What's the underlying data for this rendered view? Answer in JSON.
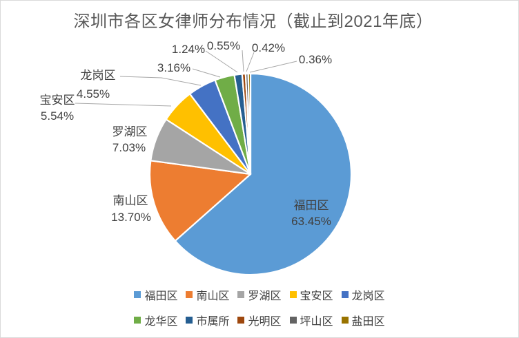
{
  "chart_data": {
    "type": "pie",
    "title": "深圳市各区女律师分布情况（截止到2021年底）",
    "direction": "clockwise",
    "start_angle_deg": 0,
    "legend_position": "bottom",
    "grid": false,
    "slices": [
      {
        "key": "futian",
        "label": "福田区",
        "value": 63.45,
        "display": "63.45%",
        "color": "#5B9BD5"
      },
      {
        "key": "nanshan",
        "label": "南山区",
        "value": 13.7,
        "display": "13.70%",
        "color": "#ED7D31"
      },
      {
        "key": "luohu",
        "label": "罗湖区",
        "value": 7.03,
        "display": "7.03%",
        "color": "#A5A5A5"
      },
      {
        "key": "baoan",
        "label": "宝安区",
        "value": 5.54,
        "display": "5.54%",
        "color": "#FFC000"
      },
      {
        "key": "longgang",
        "label": "龙岗区",
        "value": 4.55,
        "display": "4.55%",
        "color": "#4472C4"
      },
      {
        "key": "longhua",
        "label": "龙华区",
        "value": 3.16,
        "display": "3.16%",
        "color": "#70AD47"
      },
      {
        "key": "shishusuo",
        "label": "市属所",
        "value": 1.24,
        "display": "1.24%",
        "color": "#255E91"
      },
      {
        "key": "guangming",
        "label": "光明区",
        "value": 0.55,
        "display": "0.55%",
        "color": "#9E480E"
      },
      {
        "key": "pingshan",
        "label": "坪山区",
        "value": 0.42,
        "display": "0.42%",
        "color": "#636363"
      },
      {
        "key": "yantian",
        "label": "盐田区",
        "value": 0.36,
        "display": "0.36%",
        "color": "#997300"
      }
    ]
  },
  "styles": {
    "title_color": "#595959",
    "label_color": "#404040",
    "leader_line_color": "#A6A6A6",
    "slice_border_color": "#FFFFFF",
    "chart_border_color": "#D9D9D9",
    "background": "#FFFFFF"
  }
}
